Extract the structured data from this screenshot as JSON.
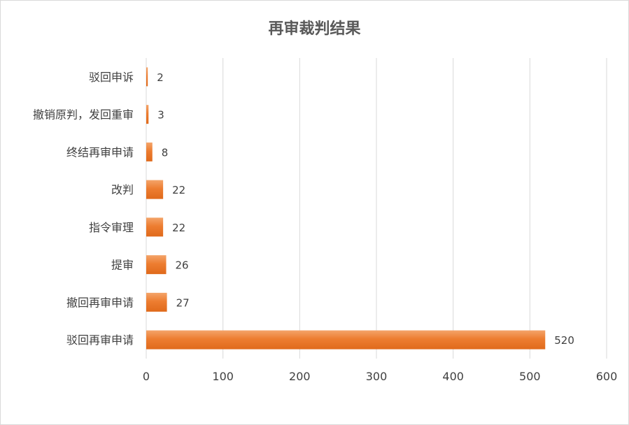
{
  "chart_data": {
    "type": "bar",
    "orientation": "horizontal",
    "title": "再审裁判结果",
    "categories": [
      "驳回申诉",
      "撤销原判，发回重审",
      "终结再审申请",
      "改判",
      "指令审理",
      "提审",
      "撤回再审申请",
      "驳回再审申请"
    ],
    "values": [
      2,
      3,
      8,
      22,
      22,
      26,
      27,
      520
    ],
    "xlim": [
      0,
      600
    ],
    "xticks": [
      0,
      100,
      200,
      300,
      400,
      500,
      600
    ],
    "grid": "vertical",
    "bar_color": "#ED7D31",
    "data_labels": true,
    "legend": "none"
  }
}
